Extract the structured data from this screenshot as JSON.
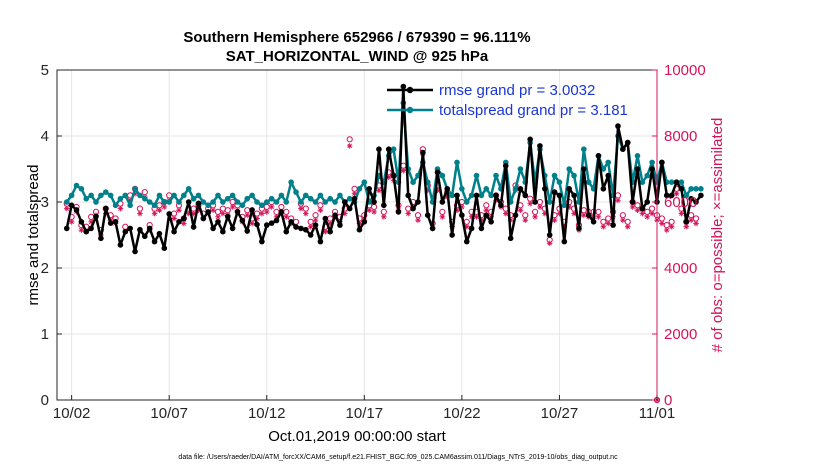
{
  "chart_data": {
    "type": "line",
    "title": "Southern Hemisphere 652966 / 679390 = 96.111%",
    "subtitle": "SAT_HORIZONTAL_WIND @ 925 hPa",
    "xlabel": "Oct.01,2019 00:00:00 start",
    "ylabel_left": "rmse and totalspread",
    "ylabel_right": "# of obs: o=possible; ×=assimilated",
    "footnote": "data file: /Users/raeder/DAI/ATM_forcXX/CAM6_setup/f.e21.FHIST_BGC.f09_025.CAM6assim.011/Diags_NTrS_2019-10/obs_diag_output.nc",
    "x_ticks": [
      "10/02",
      "10/07",
      "10/12",
      "10/17",
      "10/22",
      "10/27",
      "11/01"
    ],
    "x_tick_days": [
      1.25,
      6.25,
      11.25,
      16.25,
      21.25,
      26.25,
      31.25
    ],
    "xlim_days": [
      0.5,
      31.25
    ],
    "ylim_left": [
      0,
      5
    ],
    "y_ticks_left": [
      "0",
      "1",
      "2",
      "3",
      "4",
      "5"
    ],
    "ylim_right": [
      0,
      10000
    ],
    "y_ticks_right": [
      "0",
      "2000",
      "4000",
      "6000",
      "8000",
      "10000"
    ],
    "colors": {
      "rmse": "#000000",
      "spread": "#00808a",
      "obs": "#d4145a",
      "legend_text": "#1a36d6",
      "grid": "#e6e6e6"
    },
    "series": [
      {
        "name": "rmse",
        "legend": "rmse grand pr = 3.0032",
        "values": [
          2.6,
          2.95,
          2.88,
          2.7,
          2.55,
          2.6,
          2.78,
          2.45,
          2.9,
          2.68,
          2.7,
          2.35,
          2.55,
          2.6,
          2.25,
          2.58,
          2.48,
          2.6,
          2.4,
          2.52,
          2.3,
          2.82,
          2.55,
          2.7,
          2.75,
          3.0,
          2.62,
          2.98,
          2.75,
          2.85,
          2.6,
          2.7,
          2.55,
          2.78,
          2.6,
          2.85,
          2.72,
          2.56,
          2.88,
          2.66,
          2.4,
          2.65,
          2.68,
          2.72,
          2.85,
          2.55,
          2.7,
          2.62,
          2.6,
          2.58,
          2.5,
          2.65,
          2.4,
          2.75,
          2.55,
          2.8,
          2.65,
          3.0,
          2.9,
          3.05,
          2.58,
          2.7,
          3.2,
          3.0,
          3.8,
          2.95,
          3.8,
          3.4,
          2.85,
          4.75,
          3.1,
          2.9,
          3.0,
          3.75,
          2.8,
          2.6,
          3.45,
          3.0,
          3.2,
          2.5,
          3.1,
          2.8,
          2.4,
          2.6,
          3.1,
          2.6,
          2.8,
          2.7,
          3.1,
          2.95,
          3.55,
          2.45,
          2.8,
          3.2,
          3.1,
          3.95,
          3.0,
          3.85,
          3.2,
          2.5,
          3.15,
          3.1,
          2.4,
          3.2,
          3.1,
          2.6,
          3.5,
          2.8,
          2.7,
          3.7,
          3.2,
          3.4,
          2.65,
          4.15,
          3.8,
          3.9,
          3.0,
          3.5,
          2.9,
          3.0,
          3.5,
          3.0,
          3.6,
          3.1,
          3.1,
          3.3,
          3.2,
          2.7,
          3.05,
          3.0,
          3.1
        ]
      },
      {
        "name": "totalspread",
        "legend": "totalspread grand pr = 3.181",
        "values": [
          3.0,
          3.1,
          3.25,
          3.2,
          3.05,
          3.1,
          3.0,
          3.1,
          3.15,
          3.1,
          2.95,
          3.05,
          3.1,
          2.95,
          3.2,
          3.1,
          3.05,
          3.0,
          2.95,
          3.1,
          3.0,
          3.0,
          3.1,
          3.0,
          3.1,
          3.2,
          3.05,
          3.1,
          3.0,
          2.95,
          3.0,
          3.1,
          3.0,
          3.05,
          3.1,
          3.0,
          2.95,
          3.05,
          3.1,
          3.0,
          2.95,
          3.0,
          3.05,
          3.0,
          3.1,
          3.0,
          3.3,
          3.15,
          3.0,
          3.1,
          3.05,
          3.0,
          3.1,
          3.0,
          3.05,
          3.0,
          3.1,
          3.0,
          3.05,
          3.0,
          3.2,
          3.3,
          3.0,
          3.1,
          3.4,
          3.3,
          3.7,
          3.8,
          3.3,
          4.5,
          3.5,
          3.3,
          3.4,
          3.6,
          3.3,
          3.0,
          3.5,
          3.4,
          3.2,
          3.1,
          3.6,
          3.2,
          3.0,
          3.1,
          3.4,
          3.1,
          3.2,
          3.1,
          3.4,
          3.2,
          3.6,
          3.0,
          3.2,
          3.5,
          3.3,
          3.9,
          3.3,
          3.8,
          3.4,
          3.0,
          3.4,
          3.3,
          2.95,
          3.5,
          3.4,
          3.0,
          3.8,
          3.3,
          3.2,
          3.7,
          3.5,
          3.6,
          3.1,
          4.0,
          3.8,
          3.9,
          3.3,
          3.7,
          3.3,
          3.4,
          3.6,
          3.3,
          3.6,
          3.3,
          3.3,
          3.3,
          3.3,
          3.1,
          3.2,
          3.2,
          3.2
        ]
      },
      {
        "name": "obs_possible",
        "axis": "right",
        "values": [
          5950,
          5550,
          5850,
          5300,
          5250,
          5550,
          5700,
          5150,
          5800,
          5600,
          5500,
          5950,
          5250,
          6200,
          6400,
          5800,
          6300,
          5300,
          5800,
          5900,
          6000,
          6200,
          5650,
          5900,
          5500,
          5800,
          5800,
          5900,
          5650,
          5800,
          5900,
          5700,
          5800,
          5750,
          6000,
          5900,
          5550,
          5750,
          5500,
          5650,
          5800,
          5850,
          6000,
          5700,
          5850,
          5700,
          5500,
          5400,
          5950,
          5800,
          5400,
          5600,
          5900,
          5250,
          5500,
          5700,
          5550,
          5800,
          7900,
          6400,
          5500,
          5600,
          5900,
          5850,
          6500,
          5700,
          6900,
          6800,
          5900,
          7100,
          5800,
          6000,
          5600,
          7600,
          6500,
          5350,
          6500,
          5700,
          6300,
          5400,
          5900,
          6000,
          5400,
          5700,
          5700,
          5600,
          5900,
          5700,
          6200,
          6000,
          5800,
          5600,
          6500,
          5900,
          5600,
          6100,
          5700,
          6000,
          5800,
          4850,
          5600,
          5800,
          5400,
          6000,
          5800,
          5300,
          5750,
          5700,
          5700,
          5700,
          5400,
          5500,
          5700,
          6200,
          5600,
          5400,
          6000,
          5900,
          5800,
          5700,
          5800,
          5600,
          5500,
          5300,
          5400,
          6400,
          5800,
          5400,
          5600,
          5500,
          0
        ]
      },
      {
        "name": "obs_assimilated",
        "axis": "right",
        "values": [
          5800,
          5400,
          5700,
          5150,
          5100,
          5400,
          5600,
          5000,
          5650,
          5450,
          5350,
          5800,
          5100,
          6050,
          6250,
          5650,
          6150,
          5150,
          5650,
          5750,
          5850,
          6050,
          5500,
          5750,
          5350,
          5650,
          5650,
          5750,
          5500,
          5650,
          5750,
          5550,
          5650,
          5600,
          5850,
          5750,
          5400,
          5600,
          5350,
          5500,
          5650,
          5700,
          5850,
          5550,
          5700,
          5550,
          5350,
          5250,
          5800,
          5650,
          5250,
          5450,
          5750,
          5100,
          5350,
          5550,
          5400,
          5650,
          7700,
          6250,
          5350,
          5450,
          5750,
          5700,
          6350,
          5550,
          6750,
          6650,
          5750,
          6950,
          5650,
          5850,
          5450,
          7450,
          6350,
          5200,
          6350,
          5550,
          6150,
          5250,
          5750,
          5850,
          5250,
          5550,
          5550,
          5450,
          5750,
          5550,
          6050,
          5850,
          5650,
          5450,
          6350,
          5750,
          5450,
          5950,
          5550,
          5850,
          5650,
          4750,
          5450,
          5650,
          5250,
          5850,
          5650,
          5150,
          5600,
          5550,
          5550,
          5550,
          5250,
          5350,
          5550,
          6050,
          5450,
          5250,
          5850,
          5750,
          5650,
          5550,
          5650,
          5450,
          5350,
          5150,
          5250,
          6250,
          5650,
          5250,
          5450,
          5350,
          0
        ]
      }
    ]
  }
}
